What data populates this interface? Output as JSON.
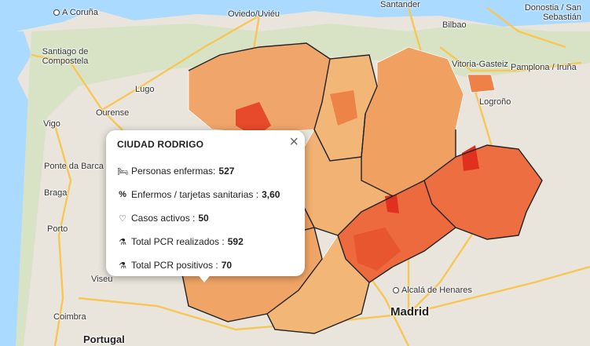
{
  "cities": [
    {
      "id": "a-coruna",
      "label": "A Coruña",
      "type": "dot"
    },
    {
      "id": "oviedo",
      "label": "Oviedo/Uviéu",
      "type": "dot"
    },
    {
      "id": "santander",
      "label": "Santander",
      "type": "dot"
    },
    {
      "id": "donostia",
      "label": "Donostia / San Sebastián",
      "type": "dot"
    },
    {
      "id": "santiago",
      "label": "Santiago de Compostela",
      "type": "dot"
    },
    {
      "id": "bilbao",
      "label": "Bilbao",
      "type": "dot"
    },
    {
      "id": "vitoria",
      "label": "Vitoria-Gasteiz",
      "type": "dot"
    },
    {
      "id": "pamplona",
      "label": "Pamplona / Iruña",
      "type": "dot"
    },
    {
      "id": "lugo",
      "label": "Lugo",
      "type": "dot"
    },
    {
      "id": "logrono",
      "label": "Logroño",
      "type": "dot"
    },
    {
      "id": "vigo",
      "label": "Vigo",
      "type": "dot"
    },
    {
      "id": "ourense",
      "label": "Ourense",
      "type": "dot"
    },
    {
      "id": "ponte-da-barca",
      "label": "Ponte da Barca",
      "type": "none"
    },
    {
      "id": "braga",
      "label": "Braga",
      "type": "dot"
    },
    {
      "id": "porto",
      "label": "Porto",
      "type": "dot"
    },
    {
      "id": "viseu",
      "label": "Viseu",
      "type": "dot"
    },
    {
      "id": "coimbra",
      "label": "Coimbra",
      "type": "dot"
    },
    {
      "id": "alcala",
      "label": "Alcalá de Henares",
      "type": "dot"
    },
    {
      "id": "madrid",
      "label": "Madrid",
      "type": "square"
    },
    {
      "id": "portugal",
      "label": "Portugal",
      "type": "country"
    }
  ],
  "popup": {
    "title": "CIUDAD RODRIGO",
    "close": "×",
    "rows": [
      {
        "icon": "bed-icon",
        "glyph": "🛏",
        "label": "Personas enfermas:",
        "value": "527"
      },
      {
        "icon": "percent-icon",
        "glyph": "%",
        "label": "Enfermos / tarjetas sanitarias :",
        "value": "3,60"
      },
      {
        "icon": "heart-pulse-icon",
        "glyph": "♡",
        "label": "Casos activos :",
        "value": "50"
      },
      {
        "icon": "flask-icon",
        "glyph": "⚗",
        "label": "Total PCR realizados :",
        "value": "592"
      },
      {
        "icon": "flask-icon",
        "glyph": "⚗",
        "label": "Total PCR positivos :",
        "value": "70"
      }
    ]
  },
  "colors": {
    "land": "#e9e5dc",
    "choropleth_low": "#f2b777",
    "choropleth_mid": "#ef9152",
    "choropleth_high": "#ec6a3d",
    "choropleth_max": "#e0311e",
    "road": "#f7c657",
    "border": "#222222"
  }
}
